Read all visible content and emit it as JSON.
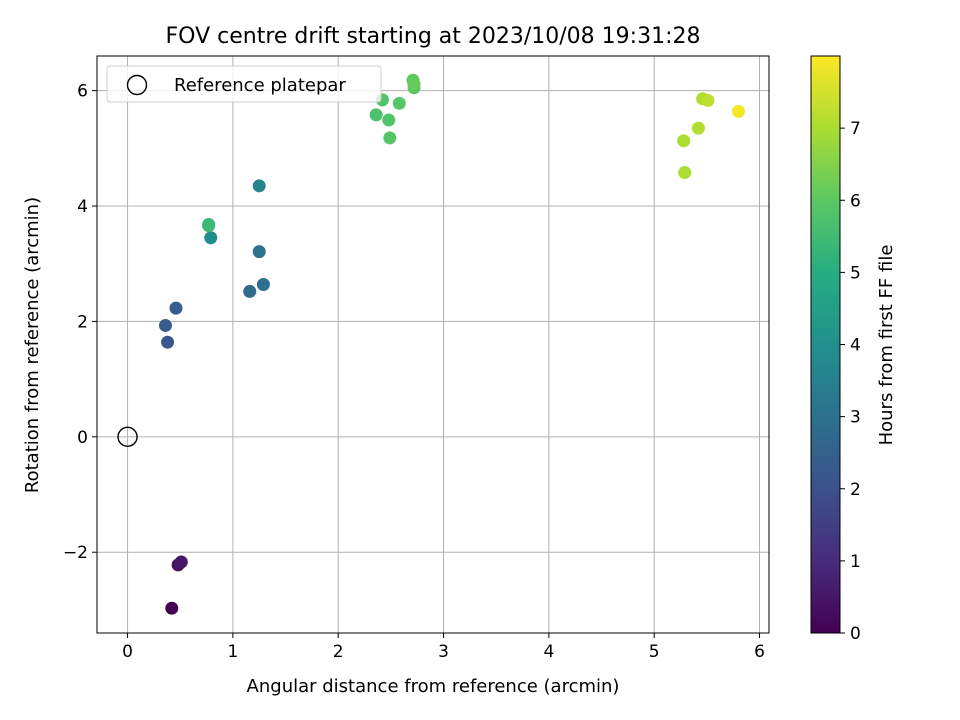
{
  "chart_data": {
    "type": "scatter",
    "title": "FOV centre drift starting at 2023/10/08 19:31:28",
    "xlabel": "Angular distance from reference (arcmin)",
    "ylabel": "Rotation from reference (arcmin)",
    "xlim": [
      -0.29,
      6.09
    ],
    "ylim": [
      -3.4,
      6.6
    ],
    "xticks": [
      0,
      1,
      2,
      3,
      4,
      5,
      6
    ],
    "xtick_labels": [
      "0",
      "1",
      "2",
      "3",
      "4",
      "5",
      "6"
    ],
    "yticks": [
      -2,
      0,
      2,
      4,
      6
    ],
    "ytick_labels": [
      "−2",
      "0",
      "2",
      "4",
      "6"
    ],
    "grid": true,
    "legend": {
      "placement": "upper-left",
      "entries": [
        "Reference platepar"
      ]
    },
    "reference_point": {
      "x": 0,
      "y": 0
    },
    "colorbar": {
      "label": "Hours from first FF file",
      "colormap": "viridis",
      "range": [
        0,
        8
      ],
      "ticks": [
        0,
        1,
        2,
        3,
        4,
        5,
        6,
        7
      ],
      "tick_labels": [
        "0",
        "1",
        "2",
        "3",
        "4",
        "5",
        "6",
        "7"
      ]
    },
    "points": [
      {
        "x": 0.42,
        "y": -2.97,
        "hours": 0.0
      },
      {
        "x": 0.48,
        "y": -2.22,
        "hours": 0.3
      },
      {
        "x": 0.51,
        "y": -2.17,
        "hours": 0.5
      },
      {
        "x": 0.38,
        "y": 1.64,
        "hours": 2.2
      },
      {
        "x": 0.36,
        "y": 1.93,
        "hours": 2.3
      },
      {
        "x": 0.46,
        "y": 2.23,
        "hours": 2.4
      },
      {
        "x": 1.16,
        "y": 2.52,
        "hours": 2.8
      },
      {
        "x": 1.29,
        "y": 2.64,
        "hours": 2.9
      },
      {
        "x": 1.25,
        "y": 3.21,
        "hours": 3.0
      },
      {
        "x": 1.25,
        "y": 4.35,
        "hours": 3.6
      },
      {
        "x": 0.79,
        "y": 3.45,
        "hours": 3.9
      },
      {
        "x": 0.77,
        "y": 3.68,
        "hours": 5.3
      },
      {
        "x": 0.77,
        "y": 3.66,
        "hours": 5.4
      },
      {
        "x": 2.36,
        "y": 5.58,
        "hours": 5.7
      },
      {
        "x": 2.42,
        "y": 5.84,
        "hours": 5.8
      },
      {
        "x": 2.48,
        "y": 5.49,
        "hours": 5.8
      },
      {
        "x": 2.49,
        "y": 5.18,
        "hours": 5.9
      },
      {
        "x": 2.58,
        "y": 5.78,
        "hours": 5.9
      },
      {
        "x": 2.71,
        "y": 6.18,
        "hours": 6.0
      },
      {
        "x": 2.72,
        "y": 6.05,
        "hours": 6.0
      },
      {
        "x": 2.72,
        "y": 6.11,
        "hours": 6.1
      },
      {
        "x": 5.29,
        "y": 4.58,
        "hours": 7.0
      },
      {
        "x": 5.28,
        "y": 5.13,
        "hours": 7.0
      },
      {
        "x": 5.42,
        "y": 5.35,
        "hours": 7.1
      },
      {
        "x": 5.46,
        "y": 5.86,
        "hours": 7.1
      },
      {
        "x": 5.51,
        "y": 5.83,
        "hours": 7.2
      },
      {
        "x": 5.8,
        "y": 5.64,
        "hours": 7.9
      }
    ]
  }
}
